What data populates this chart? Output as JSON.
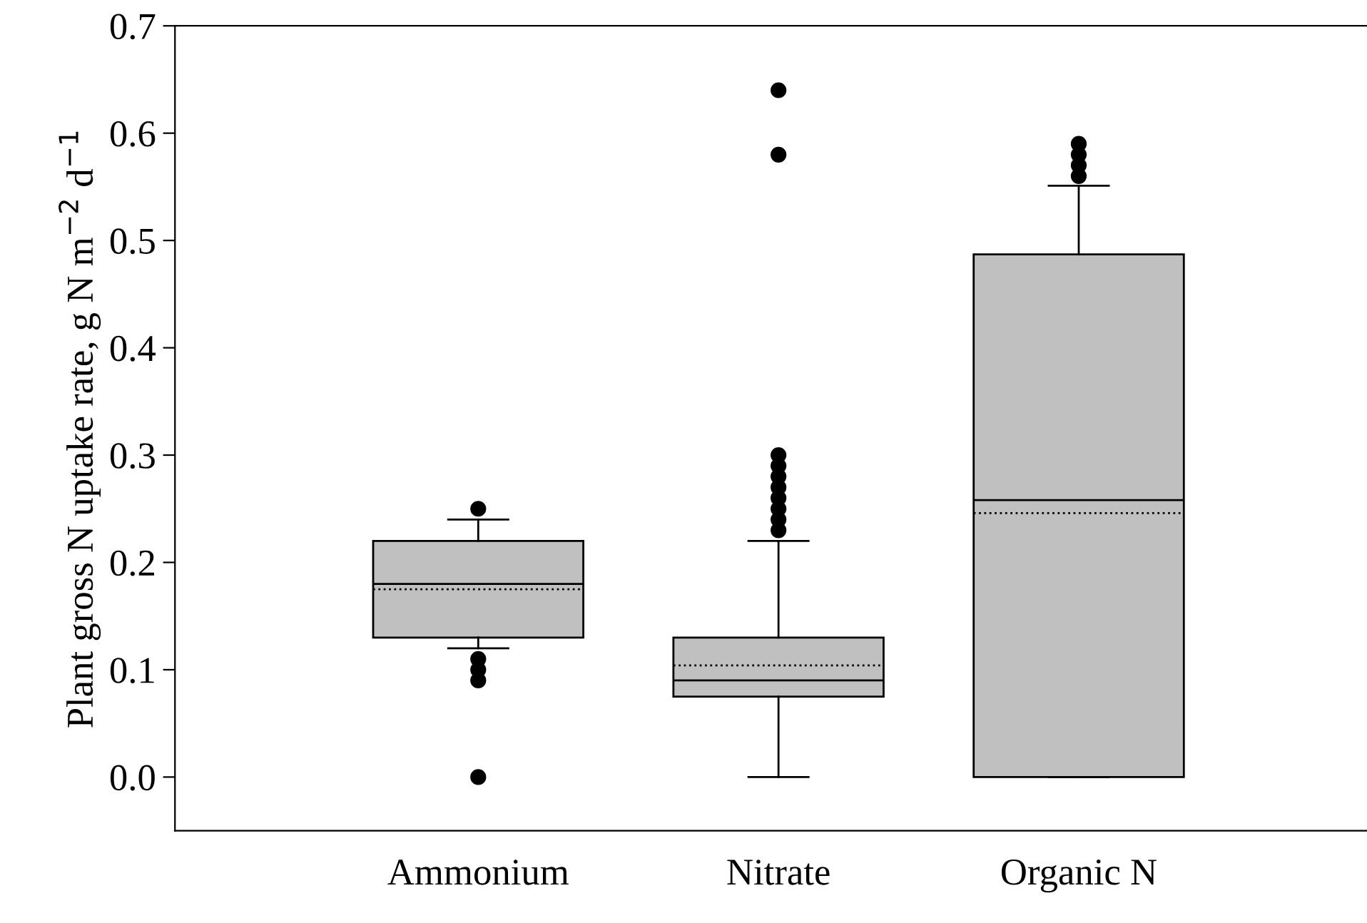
{
  "chart_data": {
    "type": "box",
    "ylabel": "Plant gross N uptake rate, g N m$^{−2}$ d$^{−1}$",
    "categories": [
      "Ammonium",
      "Nitrate",
      "Organic N"
    ],
    "color": "#c0c0c0",
    "boxes": [
      {
        "low": 0.12,
        "q1": 0.13,
        "median": 0.18,
        "q3": 0.22,
        "high": 0.24,
        "mean": 0.175,
        "outliers": [
          0.25,
          0.11,
          0.1,
          0.09,
          0.0
        ]
      },
      {
        "low": 0.0,
        "q1": 0.075,
        "median": 0.09,
        "q3": 0.13,
        "high": 0.22,
        "mean": 0.104,
        "outliers": [
          0.23,
          0.24,
          0.25,
          0.26,
          0.27,
          0.28,
          0.29,
          0.3,
          0.58,
          0.64
        ]
      },
      {
        "low": 0.0,
        "q1": 0.0,
        "median": 0.258,
        "q3": 0.487,
        "high": 0.551,
        "mean": 0.246,
        "outliers": [
          0.56,
          0.57,
          0.58,
          0.59
        ]
      }
    ],
    "ylim": [
      -0.05,
      0.7
    ],
    "yticks": [
      {
        "value": 0.0,
        "label": "0.0"
      },
      0.1,
      0.2,
      0.3,
      0.4,
      0.5,
      0.6,
      0.7
    ],
    "grid": false,
    "legend": false
  }
}
